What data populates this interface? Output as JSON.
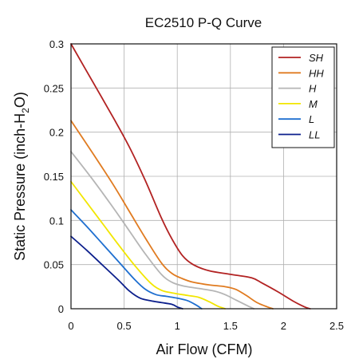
{
  "chart_data": {
    "type": "line",
    "title": "EC2510 P-Q Curve",
    "xlabel": "Air Flow (CFM)",
    "ylabel_main": "Static Pressure (inch-H",
    "ylabel_sub": "2",
    "ylabel_end": "O)",
    "xlim": [
      0,
      2.5
    ],
    "ylim": [
      0,
      0.3
    ],
    "xticks": [
      0,
      0.5,
      1,
      1.5,
      2,
      2.5
    ],
    "xtick_labels": [
      "0",
      "0.5",
      "1",
      "1.5",
      "2",
      "2.5"
    ],
    "yticks": [
      0,
      0.05,
      0.1,
      0.15,
      0.2,
      0.25,
      0.3
    ],
    "ytick_labels": [
      "0",
      "0.05",
      "0.1",
      "0.15",
      "0.2",
      "0.25",
      "0.3"
    ],
    "grid": true,
    "legend_position": "top-right",
    "series": [
      {
        "name": "SH",
        "color": "#b22222",
        "x": [
          0,
          0.2,
          0.4,
          0.55,
          0.7,
          0.85,
          0.95,
          1.05,
          1.15,
          1.3,
          1.5,
          1.7,
          1.8,
          1.95,
          2.1,
          2.2,
          2.25
        ],
        "y": [
          0.3,
          0.258,
          0.216,
          0.183,
          0.145,
          0.103,
          0.079,
          0.06,
          0.05,
          0.043,
          0.039,
          0.035,
          0.029,
          0.019,
          0.008,
          0.002,
          0
        ]
      },
      {
        "name": "HH",
        "color": "#e07b20",
        "x": [
          0,
          0.2,
          0.4,
          0.55,
          0.7,
          0.85,
          0.95,
          1.05,
          1.15,
          1.3,
          1.45,
          1.55,
          1.65,
          1.75,
          1.85,
          1.9
        ],
        "y": [
          0.213,
          0.177,
          0.14,
          0.11,
          0.08,
          0.052,
          0.04,
          0.034,
          0.03,
          0.027,
          0.025,
          0.022,
          0.015,
          0.007,
          0.002,
          0
        ]
      },
      {
        "name": "H",
        "color": "#b5b5b5",
        "x": [
          0,
          0.2,
          0.4,
          0.55,
          0.7,
          0.85,
          0.95,
          1.05,
          1.2,
          1.35,
          1.45,
          1.55,
          1.65,
          1.72
        ],
        "y": [
          0.178,
          0.147,
          0.114,
          0.088,
          0.062,
          0.039,
          0.03,
          0.026,
          0.023,
          0.02,
          0.016,
          0.01,
          0.004,
          0
        ]
      },
      {
        "name": "M",
        "color": "#f2e600",
        "x": [
          0,
          0.15,
          0.3,
          0.45,
          0.6,
          0.75,
          0.85,
          0.95,
          1.1,
          1.2,
          1.3,
          1.38,
          1.45
        ],
        "y": [
          0.144,
          0.12,
          0.096,
          0.072,
          0.049,
          0.029,
          0.021,
          0.018,
          0.015,
          0.013,
          0.008,
          0.003,
          0
        ]
      },
      {
        "name": "L",
        "color": "#1f6fd0",
        "x": [
          0,
          0.15,
          0.3,
          0.45,
          0.6,
          0.7,
          0.8,
          0.9,
          1.0,
          1.1,
          1.18,
          1.23
        ],
        "y": [
          0.112,
          0.093,
          0.073,
          0.053,
          0.033,
          0.022,
          0.016,
          0.014,
          0.012,
          0.009,
          0.004,
          0
        ]
      },
      {
        "name": "LL",
        "color": "#0c1f8c",
        "x": [
          0,
          0.15,
          0.3,
          0.45,
          0.55,
          0.65,
          0.75,
          0.85,
          0.95,
          1.0,
          1.05
        ],
        "y": [
          0.082,
          0.066,
          0.049,
          0.032,
          0.02,
          0.012,
          0.009,
          0.007,
          0.005,
          0.002,
          0
        ]
      }
    ]
  }
}
